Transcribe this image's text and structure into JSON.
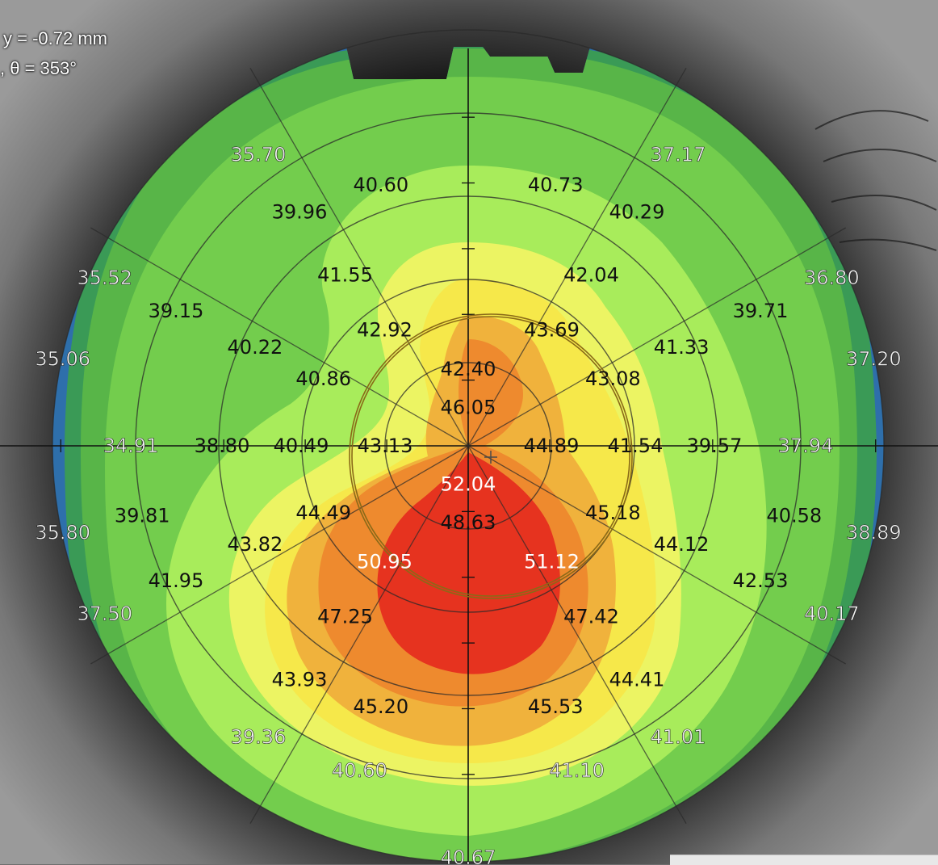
{
  "readouts": {
    "y_text": "y = -0.72 mm",
    "theta_text": ", θ = 353°"
  },
  "colors": {
    "zone_35": "#2e6fab",
    "zone_37": "#3a9a56",
    "zone_39": "#58b548",
    "zone_40": "#73cd4d",
    "zone_42": "#a8ec5b",
    "zone_43": "#ecf463",
    "zone_44": "#f6e84a",
    "zone_45": "#f0b23c",
    "zone_47": "#ee8a2e",
    "zone_50": "#e6331f",
    "grid": "#2a2a2a",
    "pupil": "#8a6a18"
  },
  "chart_data": {
    "type": "polar-topography",
    "unit": "mm",
    "angles_deg": [
      0,
      30,
      60,
      120,
      150,
      180,
      210,
      240,
      300,
      330
    ],
    "map_values": [
      {
        "r_mm": 1.0,
        "theta_deg": 0,
        "value": "44.89"
      },
      {
        "r_mm": 1.0,
        "theta_deg": 180,
        "value": "43.13"
      },
      {
        "r_mm": 1.0,
        "theta_deg": 90,
        "value": "46.05"
      },
      {
        "r_mm": 1.0,
        "theta_deg": 270,
        "value": "52.04"
      },
      {
        "r_mm": 2.0,
        "theta_deg": 0,
        "value": "41.54"
      },
      {
        "r_mm": 2.0,
        "theta_deg": 30,
        "value": "43.08"
      },
      {
        "r_mm": 2.0,
        "theta_deg": 60,
        "value": "43.69"
      },
      {
        "r_mm": 2.0,
        "theta_deg": 120,
        "value": "42.92"
      },
      {
        "r_mm": 2.0,
        "theta_deg": 150,
        "value": "40.86"
      },
      {
        "r_mm": 2.0,
        "theta_deg": 180,
        "value": "40.49"
      },
      {
        "r_mm": 2.0,
        "theta_deg": 210,
        "value": "44.49"
      },
      {
        "r_mm": 2.0,
        "theta_deg": 240,
        "value": "50.95"
      },
      {
        "r_mm": 2.0,
        "theta_deg": 300,
        "value": "51.12"
      },
      {
        "r_mm": 2.0,
        "theta_deg": 330,
        "value": "45.18"
      },
      {
        "r_mm": 2.0,
        "theta_deg": 90,
        "value": "42.40"
      },
      {
        "r_mm": 2.0,
        "theta_deg": 270,
        "value": "48.63"
      },
      {
        "r_mm": 3.0,
        "theta_deg": 0,
        "value": "39.57"
      },
      {
        "r_mm": 3.0,
        "theta_deg": 30,
        "value": "41.33"
      },
      {
        "r_mm": 3.0,
        "theta_deg": 60,
        "value": "42.04"
      },
      {
        "r_mm": 3.0,
        "theta_deg": 120,
        "value": "41.55"
      },
      {
        "r_mm": 3.0,
        "theta_deg": 150,
        "value": "40.22"
      },
      {
        "r_mm": 3.0,
        "theta_deg": 180,
        "value": "38.80"
      },
      {
        "r_mm": 3.0,
        "theta_deg": 210,
        "value": "43.82"
      },
      {
        "r_mm": 3.0,
        "theta_deg": 240,
        "value": "47.25"
      },
      {
        "r_mm": 3.0,
        "theta_deg": 300,
        "value": "47.42"
      },
      {
        "r_mm": 3.0,
        "theta_deg": 330,
        "value": "44.12"
      },
      {
        "r_mm": 4.0,
        "theta_deg": 0,
        "value": "37.94"
      },
      {
        "r_mm": 4.0,
        "theta_deg": 30,
        "value": "39.71"
      },
      {
        "r_mm": 4.0,
        "theta_deg": 60,
        "value": "40.29"
      },
      {
        "r_mm": 4.0,
        "theta_deg": 75,
        "value": "40.73"
      },
      {
        "r_mm": 4.0,
        "theta_deg": 105,
        "value": "40.60"
      },
      {
        "r_mm": 4.0,
        "theta_deg": 120,
        "value": "39.96"
      },
      {
        "r_mm": 4.0,
        "theta_deg": 150,
        "value": "39.15"
      },
      {
        "r_mm": 4.0,
        "theta_deg": 180,
        "value": "34.91"
      },
      {
        "r_mm": 4.0,
        "theta_deg": 195,
        "value": "39.81"
      },
      {
        "r_mm": 4.0,
        "theta_deg": 210,
        "value": "41.95"
      },
      {
        "r_mm": 4.0,
        "theta_deg": 240,
        "value": "43.93"
      },
      {
        "r_mm": 4.0,
        "theta_deg": 255,
        "value": "45.20"
      },
      {
        "r_mm": 4.0,
        "theta_deg": 285,
        "value": "45.53"
      },
      {
        "r_mm": 4.0,
        "theta_deg": 300,
        "value": "44.41"
      },
      {
        "r_mm": 4.0,
        "theta_deg": 330,
        "value": "42.53"
      },
      {
        "r_mm": 4.0,
        "theta_deg": 345,
        "value": "40.58"
      },
      {
        "r_mm": 5.0,
        "theta_deg": 15,
        "value": "37.20"
      },
      {
        "r_mm": 5.0,
        "theta_deg": 30,
        "value": "36.80"
      },
      {
        "r_mm": 5.0,
        "theta_deg": 60,
        "value": "37.17"
      },
      {
        "r_mm": 5.0,
        "theta_deg": 120,
        "value": "35.70"
      },
      {
        "r_mm": 5.0,
        "theta_deg": 150,
        "value": "35.52"
      },
      {
        "r_mm": 5.0,
        "theta_deg": 165,
        "value": "35.06"
      },
      {
        "r_mm": 5.0,
        "theta_deg": 195,
        "value": "35.80"
      },
      {
        "r_mm": 5.0,
        "theta_deg": 210,
        "value": "37.50"
      },
      {
        "r_mm": 5.0,
        "theta_deg": 240,
        "value": "39.36"
      },
      {
        "r_mm": 5.0,
        "theta_deg": 255,
        "value": "40.60"
      },
      {
        "r_mm": 5.0,
        "theta_deg": 270,
        "value": "40.67"
      },
      {
        "r_mm": 5.0,
        "theta_deg": 285,
        "value": "41.10"
      },
      {
        "r_mm": 5.0,
        "theta_deg": 300,
        "value": "41.01"
      },
      {
        "r_mm": 5.0,
        "theta_deg": 330,
        "value": "40.17"
      },
      {
        "r_mm": 5.0,
        "theta_deg": 345,
        "value": "38.89"
      }
    ]
  }
}
